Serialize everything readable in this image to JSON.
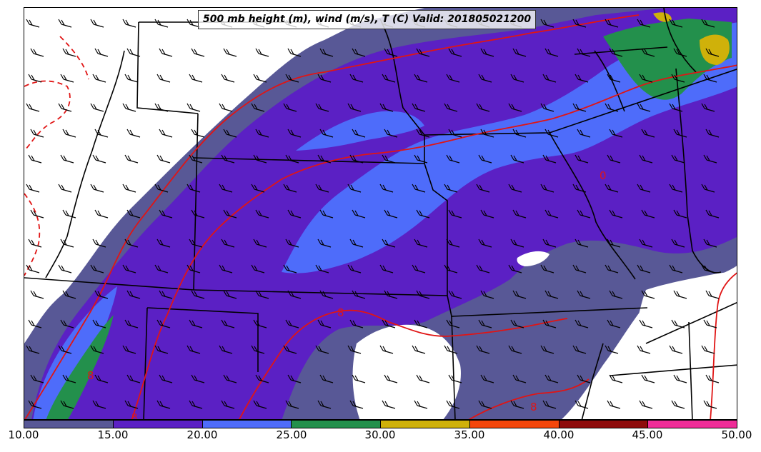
{
  "title": "500 mb height (m), wind (m/s), T (C) Valid: 201805021200",
  "colorbar": {
    "colors": [
      "#585896",
      "#5b20c4",
      "#4e6cfa",
      "#23904c",
      "#cfb10a",
      "#f4460a",
      "#8e0b0b",
      "#ef2d98"
    ],
    "tick_labels": [
      "10.00",
      "15.00",
      "20.00",
      "25.00",
      "30.00",
      "35.00",
      "40.00",
      "45.00",
      "50.00"
    ]
  },
  "map": {
    "background_color": "#ffffff",
    "border_color": "#000000",
    "contour_color": "#e01515",
    "contour_labels": [
      "8",
      "8",
      "8",
      "8",
      "0"
    ]
  }
}
